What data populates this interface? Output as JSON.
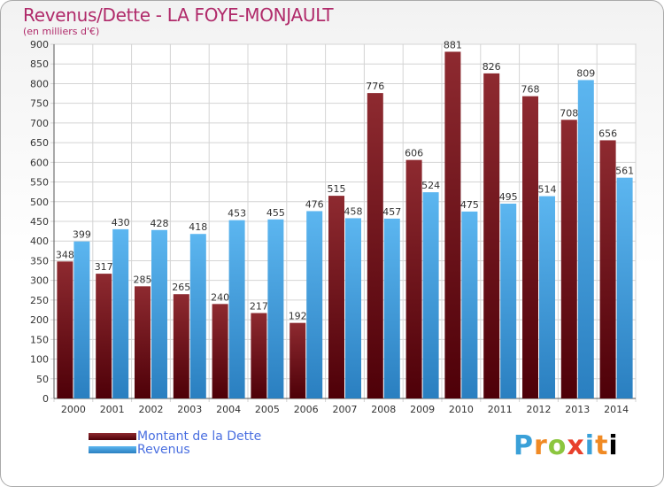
{
  "header": {
    "title": "Revenus/Dette - LA FOYE-MONJAULT",
    "subtitle": "(en milliers d'€)"
  },
  "legend": {
    "items": [
      {
        "label": "Montant de la Dette",
        "color": "#6e0f18"
      },
      {
        "label": "Revenus",
        "color": "#3d9ee6"
      }
    ]
  },
  "logo": {
    "letters": [
      "P",
      "r",
      "o",
      "x",
      "i",
      "t",
      "i"
    ]
  },
  "chart_data": {
    "type": "bar",
    "categories": [
      "2000",
      "2001",
      "2002",
      "2003",
      "2004",
      "2005",
      "2006",
      "2007",
      "2008",
      "2009",
      "2010",
      "2011",
      "2012",
      "2013",
      "2014"
    ],
    "series": [
      {
        "name": "Montant de la Dette",
        "color": "#6e0f18",
        "values": [
          348,
          317,
          285,
          265,
          240,
          217,
          192,
          515,
          776,
          606,
          881,
          826,
          768,
          708,
          656
        ]
      },
      {
        "name": "Revenus",
        "color": "#3d9ee6",
        "values": [
          399,
          430,
          428,
          418,
          453,
          455,
          476,
          458,
          457,
          524,
          475,
          495,
          514,
          809,
          561
        ]
      }
    ],
    "ylim": [
      0,
      900
    ],
    "yticks": [
      0,
      50,
      100,
      150,
      200,
      250,
      300,
      350,
      400,
      450,
      500,
      550,
      600,
      650,
      700,
      750,
      800,
      850,
      900
    ],
    "grid": true,
    "title": "Revenus/Dette - LA FOYE-MONJAULT",
    "ylabel": "(en milliers d'€)",
    "xlabel": "",
    "legend_position": "bottom-left"
  }
}
